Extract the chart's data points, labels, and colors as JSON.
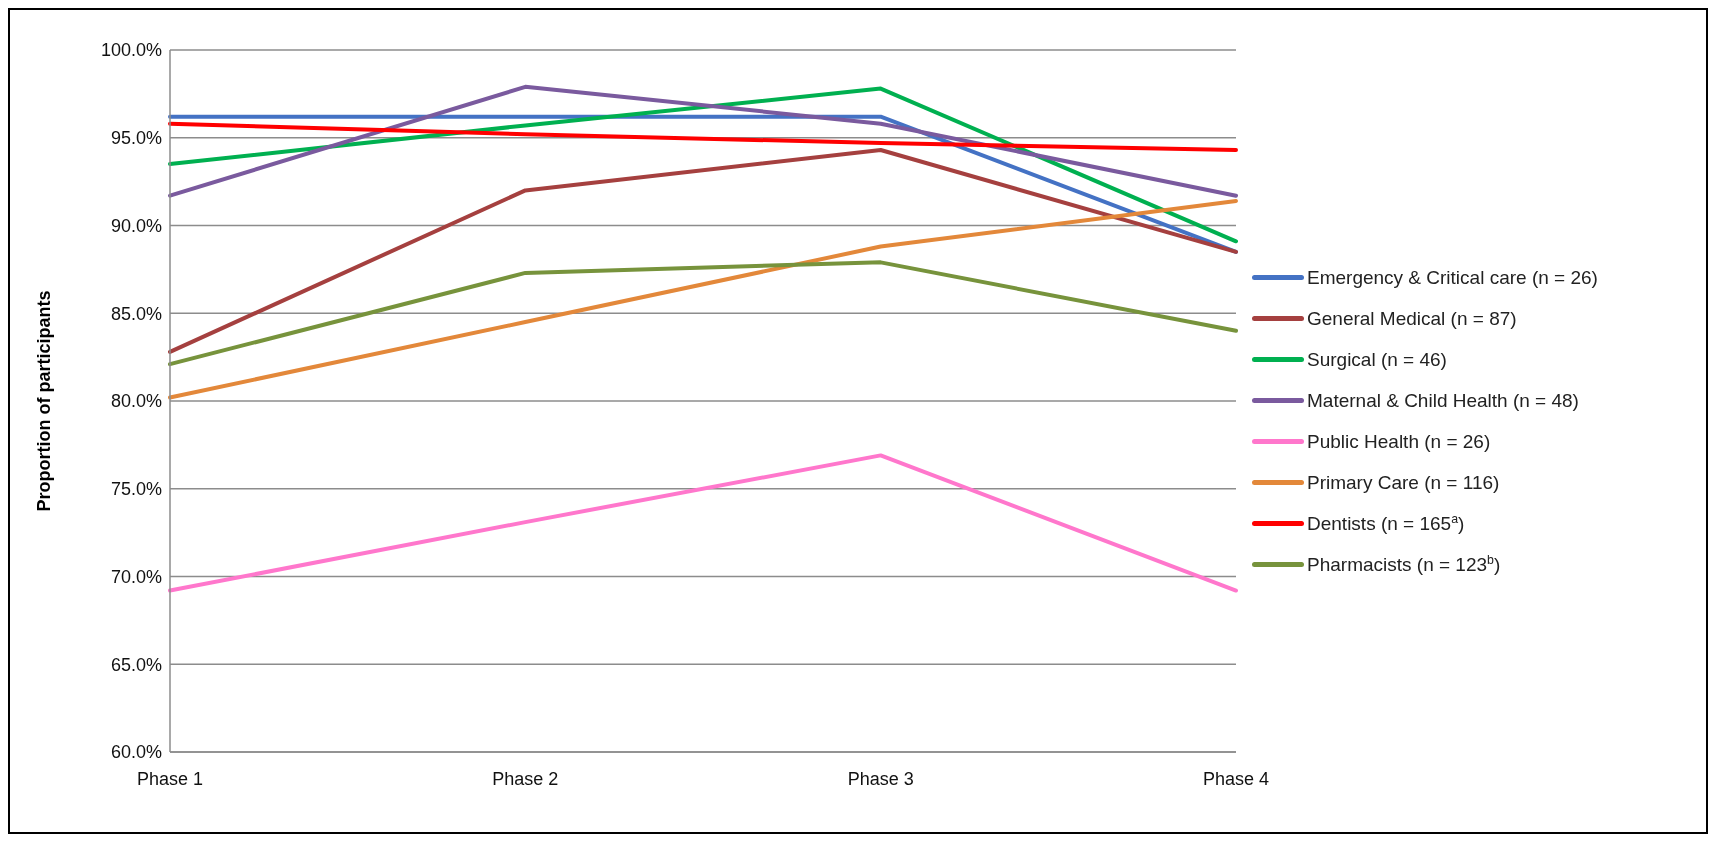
{
  "chart_data": {
    "type": "line",
    "ylabel": "Proportion of participants",
    "categories": [
      "Phase 1",
      "Phase 2",
      "Phase 3",
      "Phase 4"
    ],
    "series": [
      {
        "name": "Emergency & Critical care (n = 26)",
        "color": "#4472c4",
        "values": [
          96.2,
          96.2,
          96.2,
          88.5
        ]
      },
      {
        "name": "General Medical (n = 87)",
        "color": "#a5403f",
        "values": [
          82.8,
          92.0,
          94.3,
          88.5
        ]
      },
      {
        "name": "Surgical (n = 46)",
        "color": "#00b050",
        "values": [
          93.5,
          95.7,
          97.8,
          89.1
        ]
      },
      {
        "name": "Maternal & Child Health (n = 48)",
        "color": "#7a5a9e",
        "values": [
          91.7,
          97.9,
          95.8,
          91.7
        ]
      },
      {
        "name": "Public Health (n = 26)",
        "color": "#ff77cc",
        "values": [
          69.2,
          73.1,
          76.9,
          69.2
        ]
      },
      {
        "name": "Primary Care (n = 116)",
        "color": "#e3883a",
        "values": [
          80.2,
          84.5,
          88.8,
          91.4
        ]
      },
      {
        "name": "Dentists (n = 165$^{a}$)",
        "color": "#ff0000",
        "values": [
          95.8,
          95.2,
          94.7,
          94.3
        ]
      },
      {
        "name": "Pharmacists (n = 123$^{b}$)",
        "color": "#77933c",
        "values": [
          82.1,
          87.3,
          87.9,
          84.0
        ]
      }
    ],
    "ylim": [
      60,
      100
    ],
    "yticks": [
      {
        "value": 60,
        "label": "60.0%"
      },
      {
        "value": 65,
        "label": "65.0%"
      },
      {
        "value": 70,
        "label": "70.0%"
      },
      {
        "value": 75,
        "label": "75.0%"
      },
      {
        "value": 80,
        "label": "80.0%"
      },
      {
        "value": 85,
        "label": "85.0%"
      },
      {
        "value": 90,
        "label": "90.0%"
      },
      {
        "value": 95,
        "label": "95.0%"
      },
      {
        "value": 100,
        "label": "100.0%"
      }
    ],
    "grid": "y",
    "legend": "right",
    "marker": "none",
    "line_style": "solid"
  }
}
